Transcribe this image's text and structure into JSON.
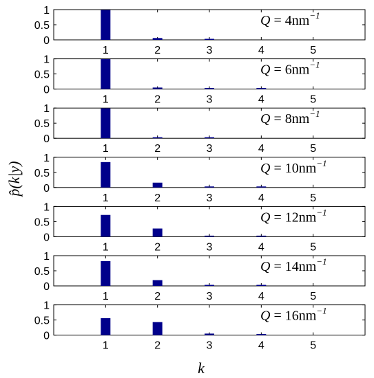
{
  "figure": {
    "ylabel": "p̂(k|y)",
    "xlabel": "k"
  },
  "chart_data": [
    {
      "type": "bar",
      "annotation": {
        "q": "Q",
        "eq": " = 4nm",
        "sup": "−1"
      },
      "categories": [
        "1",
        "2",
        "3",
        "4",
        "5"
      ],
      "values": [
        0.99,
        0.06,
        0.02,
        0.0,
        0.0
      ],
      "ylim": [
        0,
        1
      ],
      "yticks": [
        "0",
        "0.5",
        "1"
      ],
      "xlim": [
        0,
        6
      ],
      "bar_color": "#00008b"
    },
    {
      "type": "bar",
      "annotation": {
        "q": "Q",
        "eq": " = 6nm",
        "sup": "−1"
      },
      "categories": [
        "1",
        "2",
        "3",
        "4",
        "5"
      ],
      "values": [
        0.99,
        0.05,
        0.02,
        0.02,
        0.0
      ],
      "ylim": [
        0,
        1
      ],
      "yticks": [
        "0",
        "0.5",
        "1"
      ],
      "xlim": [
        0,
        6
      ],
      "bar_color": "#00008b"
    },
    {
      "type": "bar",
      "annotation": {
        "q": "Q",
        "eq": " = 8nm",
        "sup": "−1"
      },
      "categories": [
        "1",
        "2",
        "3",
        "4",
        "5"
      ],
      "values": [
        0.99,
        0.02,
        0.02,
        0.0,
        0.0
      ],
      "ylim": [
        0,
        1
      ],
      "yticks": [
        "0",
        "0.5",
        "1"
      ],
      "xlim": [
        0,
        6
      ],
      "bar_color": "#00008b"
    },
    {
      "type": "bar",
      "annotation": {
        "q": "Q",
        "eq": " = 10nm",
        "sup": "−1"
      },
      "categories": [
        "1",
        "2",
        "3",
        "4",
        "5"
      ],
      "values": [
        0.84,
        0.16,
        0.01,
        0.01,
        0.0
      ],
      "ylim": [
        0,
        1
      ],
      "yticks": [
        "0",
        "0.5",
        "1"
      ],
      "xlim": [
        0,
        6
      ],
      "bar_color": "#00008b"
    },
    {
      "type": "bar",
      "annotation": {
        "q": "Q",
        "eq": " = 12nm",
        "sup": "−1"
      },
      "categories": [
        "1",
        "2",
        "3",
        "4",
        "5"
      ],
      "values": [
        0.72,
        0.27,
        0.02,
        0.02,
        0.0
      ],
      "ylim": [
        0,
        1
      ],
      "yticks": [
        "0",
        "0.5",
        "1"
      ],
      "xlim": [
        0,
        6
      ],
      "bar_color": "#00008b"
    },
    {
      "type": "bar",
      "annotation": {
        "q": "Q",
        "eq": " = 14nm",
        "sup": "−1"
      },
      "categories": [
        "1",
        "2",
        "3",
        "4",
        "5"
      ],
      "values": [
        0.82,
        0.19,
        0.02,
        0.02,
        0.0
      ],
      "ylim": [
        0,
        1
      ],
      "yticks": [
        "0",
        "0.5",
        "1"
      ],
      "xlim": [
        0,
        6
      ],
      "bar_color": "#00008b"
    },
    {
      "type": "bar",
      "annotation": {
        "q": "Q",
        "eq": " = 16nm",
        "sup": "−1"
      },
      "categories": [
        "1",
        "2",
        "3",
        "4",
        "5"
      ],
      "values": [
        0.56,
        0.43,
        0.05,
        0.01,
        0.0
      ],
      "ylim": [
        0,
        1
      ],
      "yticks": [
        "0",
        "0.5",
        "1"
      ],
      "xlim": [
        0,
        6
      ],
      "bar_color": "#00008b"
    }
  ]
}
